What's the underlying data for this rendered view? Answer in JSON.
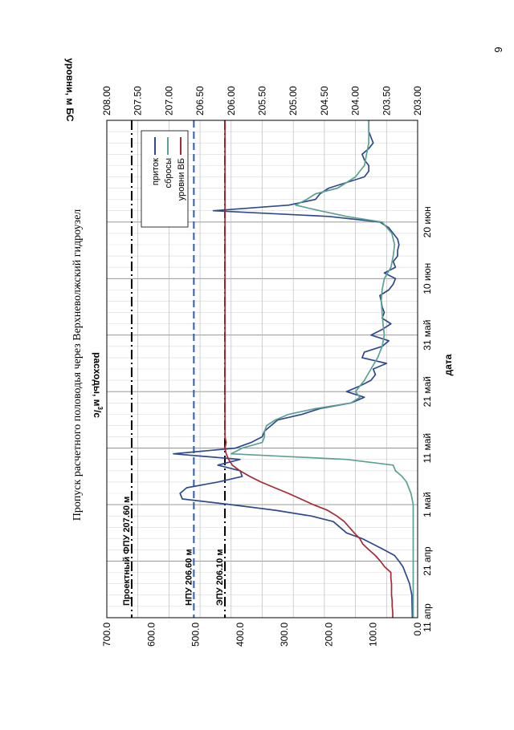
{
  "page_number": "6",
  "chart_data": {
    "type": "line",
    "title": "Пропуск расчетного половодья через Верхневолжский гидроузел",
    "xlabel": "дата",
    "ylabel_left": "расходы, м³/с",
    "ylabel_left_text": "расходы, м",
    "ylabel_left_sup": "3",
    "ylabel_left_tail": "/с",
    "ylabel_right": "уровни, м БС",
    "x_ticks": [
      "11 апр",
      "21 апр",
      "1 май",
      "11 май",
      "21 май",
      "31 май",
      "10 июн",
      "20 июн"
    ],
    "ylim_left": [
      0,
      700
    ],
    "y_ticks_left": [
      "0.0",
      "100.0",
      "200.0",
      "300.0",
      "400.0",
      "500.0",
      "600.0",
      "700.0"
    ],
    "ylim_right": [
      203,
      208
    ],
    "y_ticks_right": [
      "203.00",
      "203.50",
      "204.00",
      "204.50",
      "205.00",
      "205.50",
      "206.00",
      "206.50",
      "207.00",
      "207.50",
      "208.00"
    ],
    "grid": true,
    "legend_position": "top-right",
    "legend": [
      "приток",
      "сбросы",
      "уровни ВБ"
    ],
    "series": [
      {
        "name": "приток",
        "color": "#2e4a8c",
        "axis": "left",
        "points": [
          [
            0,
            12
          ],
          [
            4,
            13
          ],
          [
            6,
            18
          ],
          [
            8,
            28
          ],
          [
            9,
            33
          ],
          [
            10,
            42
          ],
          [
            11,
            52
          ],
          [
            12,
            75
          ],
          [
            13,
            100
          ],
          [
            14,
            125
          ],
          [
            15,
            160
          ],
          [
            17,
            190
          ],
          [
            18,
            240
          ],
          [
            19,
            320
          ],
          [
            20,
            420
          ],
          [
            21,
            530
          ],
          [
            22,
            535
          ],
          [
            23,
            520
          ],
          [
            24,
            450
          ],
          [
            25,
            395
          ],
          [
            26,
            400
          ],
          [
            27,
            450
          ],
          [
            28,
            400
          ],
          [
            29,
            550
          ],
          [
            30,
            410
          ],
          [
            31,
            375
          ],
          [
            32,
            350
          ],
          [
            33,
            345
          ],
          [
            35,
            315
          ],
          [
            36,
            260
          ],
          [
            37,
            220
          ],
          [
            38,
            150
          ],
          [
            39,
            120
          ],
          [
            40,
            160
          ],
          [
            41,
            130
          ],
          [
            42,
            105
          ],
          [
            43,
            95
          ],
          [
            44,
            100
          ],
          [
            45,
            70
          ],
          [
            46,
            125
          ],
          [
            47,
            120
          ],
          [
            48,
            80
          ],
          [
            49,
            65
          ],
          [
            50,
            105
          ],
          [
            51,
            80
          ],
          [
            52,
            60
          ],
          [
            53,
            80
          ],
          [
            54,
            75
          ],
          [
            55,
            80
          ],
          [
            56,
            82
          ],
          [
            57,
            85
          ],
          [
            58,
            65
          ],
          [
            59,
            55
          ],
          [
            60,
            50
          ],
          [
            61,
            75
          ],
          [
            62,
            50
          ],
          [
            63,
            55
          ],
          [
            64,
            45
          ],
          [
            65,
            45
          ],
          [
            66,
            42
          ],
          [
            67,
            45
          ],
          [
            68,
            55
          ],
          [
            69,
            65
          ],
          [
            70,
            85
          ],
          [
            71,
            200
          ],
          [
            72,
            460
          ],
          [
            73,
            290
          ],
          [
            74,
            230
          ],
          [
            75,
            220
          ],
          [
            76,
            200
          ],
          [
            77,
            160
          ],
          [
            78,
            120
          ],
          [
            79,
            110
          ],
          [
            80,
            110
          ],
          [
            81,
            120
          ],
          [
            82,
            125
          ],
          [
            83,
            110
          ],
          [
            84,
            100
          ],
          [
            85,
            105
          ],
          [
            86,
            110
          ],
          [
            87,
            110
          ],
          [
            88,
            110
          ]
        ]
      },
      {
        "name": "сбросы",
        "color": "#5aa193",
        "axis": "left",
        "points": [
          [
            0,
            10
          ],
          [
            20,
            10
          ],
          [
            22,
            15
          ],
          [
            23,
            20
          ],
          [
            24,
            25
          ],
          [
            25,
            35
          ],
          [
            26,
            50
          ],
          [
            27,
            55
          ],
          [
            28,
            160
          ],
          [
            29,
            420
          ],
          [
            30,
            395
          ],
          [
            31,
            350
          ],
          [
            32,
            345
          ],
          [
            33,
            345
          ],
          [
            34,
            340
          ],
          [
            35,
            320
          ],
          [
            36,
            290
          ],
          [
            37,
            230
          ],
          [
            38,
            150
          ],
          [
            39,
            130
          ],
          [
            40,
            140
          ],
          [
            42,
            120
          ],
          [
            44,
            105
          ],
          [
            46,
            90
          ],
          [
            48,
            80
          ],
          [
            50,
            75
          ],
          [
            52,
            78
          ],
          [
            54,
            80
          ],
          [
            56,
            82
          ],
          [
            58,
            80
          ],
          [
            60,
            75
          ],
          [
            62,
            60
          ],
          [
            64,
            55
          ],
          [
            66,
            52
          ],
          [
            68,
            58
          ],
          [
            70,
            80
          ],
          [
            71,
            160
          ],
          [
            72,
            220
          ],
          [
            73,
            275
          ],
          [
            74,
            250
          ],
          [
            75,
            230
          ],
          [
            76,
            180
          ],
          [
            77,
            160
          ],
          [
            78,
            140
          ],
          [
            79,
            130
          ],
          [
            80,
            120
          ],
          [
            82,
            115
          ],
          [
            84,
            110
          ],
          [
            86,
            110
          ],
          [
            88,
            110
          ]
        ]
      },
      {
        "name": "уровни ВБ",
        "color": "#a52a36",
        "axis": "right",
        "points": [
          [
            0,
            203.4
          ],
          [
            1,
            203.4
          ],
          [
            2,
            203.41
          ],
          [
            3,
            203.41
          ],
          [
            4,
            203.42
          ],
          [
            5,
            203.42
          ],
          [
            6,
            203.42
          ],
          [
            7,
            203.43
          ],
          [
            8,
            203.43
          ],
          [
            9,
            203.53
          ],
          [
            10,
            203.6
          ],
          [
            11,
            203.68
          ],
          [
            12,
            203.78
          ],
          [
            13,
            203.88
          ],
          [
            14,
            203.93
          ],
          [
            15,
            204.02
          ],
          [
            16,
            204.1
          ],
          [
            17,
            204.18
          ],
          [
            18,
            204.3
          ],
          [
            19,
            204.45
          ],
          [
            20,
            204.68
          ],
          [
            21,
            204.88
          ],
          [
            22,
            205.08
          ],
          [
            23,
            205.3
          ],
          [
            24,
            205.52
          ],
          [
            25,
            205.7
          ],
          [
            26,
            205.86
          ],
          [
            27,
            205.98
          ],
          [
            28,
            206.04
          ],
          [
            29,
            206.08
          ],
          [
            30,
            206.1
          ],
          [
            31,
            206.08
          ],
          [
            32,
            206.1
          ],
          [
            33,
            206.1
          ],
          [
            35,
            206.1
          ],
          [
            40,
            206.1
          ],
          [
            50,
            206.1
          ],
          [
            60,
            206.1
          ],
          [
            70,
            206.1
          ],
          [
            80,
            206.1
          ],
          [
            88,
            206.1
          ]
        ]
      }
    ],
    "reference_lines": [
      {
        "label": "Проектный ФПУ 207.60 м",
        "level": 207.6,
        "color": "#000000",
        "style": "dash-dot"
      },
      {
        "label": "НПУ 206.60 м",
        "level": 206.6,
        "color": "#2f5cb8",
        "style": "dashed"
      },
      {
        "label": "ЭПУ 206.10 м",
        "level": 206.1,
        "color": "#000000",
        "style": "dash-dot"
      }
    ]
  }
}
